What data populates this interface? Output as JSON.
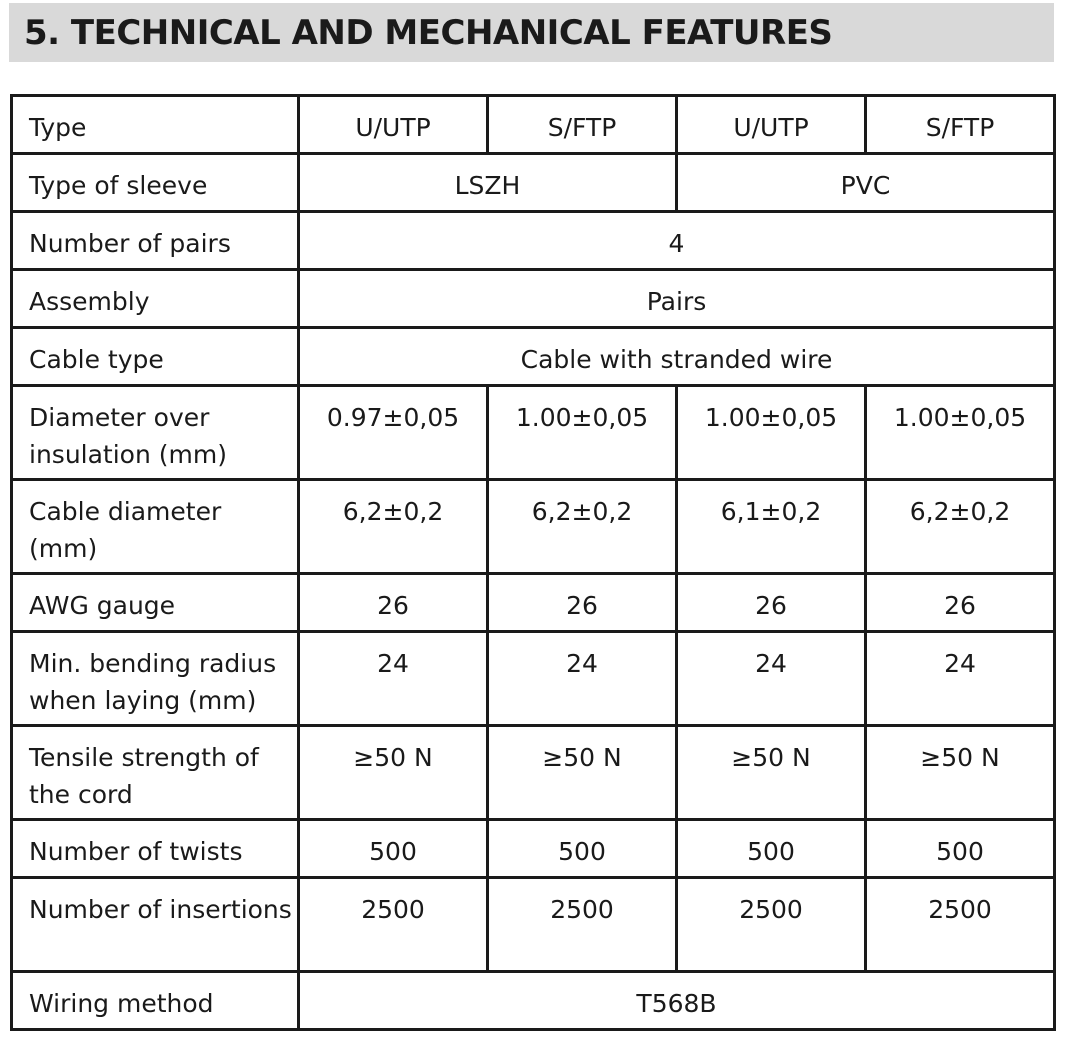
{
  "header": {
    "title": "5. TECHNICAL AND MECHANICAL FEATURES"
  },
  "table": {
    "type": {
      "label": "Type",
      "values": [
        "U/UTP",
        "S/FTP",
        "U/UTP",
        "S/FTP"
      ]
    },
    "sleeve": {
      "label": "Type of sleeve",
      "values": [
        "LSZH",
        "PVC"
      ]
    },
    "pairs": {
      "label": "Number of pairs",
      "value": "4"
    },
    "assembly": {
      "label": "Assembly",
      "value": "Pairs"
    },
    "cable_type": {
      "label": "Cable type",
      "value": "Cable with stranded wire"
    },
    "diameter_insulation": {
      "label": "Diameter over insulation (mm)",
      "values": [
        "0.97±0,05",
        "1.00±0,05",
        "1.00±0,05",
        "1.00±0,05"
      ]
    },
    "cable_diameter": {
      "label": "Cable diameter (mm)",
      "values": [
        "6,2±0,2",
        "6,2±0,2",
        "6,1±0,2",
        "6,2±0,2"
      ]
    },
    "awg": {
      "label": "AWG gauge",
      "values": [
        "26",
        "26",
        "26",
        "26"
      ]
    },
    "bending": {
      "label": "Min. bending radius when laying (mm)",
      "values": [
        "24",
        "24",
        "24",
        "24"
      ]
    },
    "tensile": {
      "label": "Tensile strength of the cord",
      "values": [
        "≥50 N",
        "≥50 N",
        "≥50 N",
        "≥50 N"
      ]
    },
    "twists": {
      "label": "Number of twists",
      "values": [
        "500",
        "500",
        "500",
        "500"
      ]
    },
    "insertions": {
      "label": "Number of insertions",
      "values": [
        "2500",
        "2500",
        "2500",
        "2500"
      ]
    },
    "wiring": {
      "label": "Wiring method",
      "value": "T568B"
    }
  }
}
